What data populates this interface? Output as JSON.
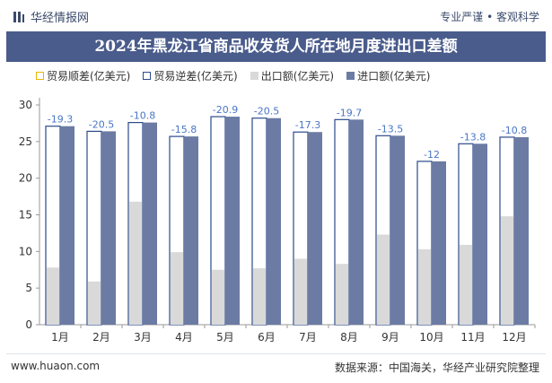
{
  "header": {
    "brand": "华经情报网",
    "tagline": "专业严谨 • 客观科学"
  },
  "footer": {
    "website": "www.huaon.com",
    "source": "数据来源：中国海关，华经产业研究院整理"
  },
  "colors": {
    "surplus": "#ffffff",
    "deficit": "#ffffff",
    "export": "#d9d9d9",
    "import": "#6b7ba3",
    "label": "#4a76c4",
    "title_bg": "#4a5c8c"
  },
  "chart_data": {
    "type": "bar",
    "title": "2024年黑龙江省商品收发货人所在地月度进出口差额",
    "categories": [
      "1月",
      "2月",
      "3月",
      "4月",
      "5月",
      "6月",
      "7月",
      "8月",
      "9月",
      "10月",
      "11月",
      "12月"
    ],
    "series": [
      {
        "name": "贸易顺差(亿美元)",
        "values": [
          null,
          null,
          null,
          null,
          null,
          null,
          null,
          null,
          null,
          null,
          null,
          null
        ]
      },
      {
        "name": "贸易逆差(亿美元)",
        "values": [
          27.1,
          26.4,
          27.6,
          25.7,
          28.4,
          28.2,
          26.3,
          28.0,
          25.8,
          22.3,
          24.7,
          25.6
        ]
      },
      {
        "name": "出口额(亿美元)",
        "values": [
          7.8,
          5.9,
          16.8,
          9.9,
          7.5,
          7.7,
          9.0,
          8.3,
          12.3,
          10.3,
          10.9,
          14.8
        ]
      },
      {
        "name": "进口额(亿美元)",
        "values": [
          27.1,
          26.4,
          27.6,
          25.7,
          28.4,
          28.2,
          26.3,
          28.0,
          25.8,
          22.3,
          24.7,
          25.6
        ]
      }
    ],
    "balance_labels": [
      "-19.3",
      "-20.5",
      "-10.8",
      "-15.8",
      "-20.9",
      "-20.5",
      "-17.3",
      "-19.7",
      "-13.5",
      "-12",
      "-13.8",
      "-10.8"
    ],
    "ylim": [
      0,
      30
    ],
    "yticks": [
      "0",
      "5",
      "10",
      "15",
      "20",
      "25",
      "30"
    ],
    "legend_position": "top-left",
    "grid": false
  }
}
